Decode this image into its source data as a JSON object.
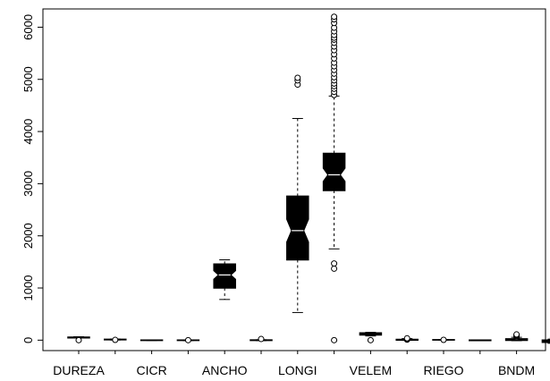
{
  "chart_data": {
    "type": "boxplot",
    "title": "",
    "xlabel": "",
    "ylabel": "",
    "ylim": [
      -200,
      6350
    ],
    "yticks": [
      0,
      1000,
      2000,
      3000,
      4000,
      5000,
      6000
    ],
    "ytick_labels": [
      "0",
      "1000",
      "2000",
      "3000",
      "4000",
      "5000",
      "6000"
    ],
    "notched": true,
    "grid": false,
    "legend": "none",
    "box_color": "#000000",
    "categories": [
      "DUREZA",
      "",
      "CICR",
      "",
      "ANCHO",
      "",
      "LONGI",
      "",
      "VELEM",
      "",
      "RIEGO",
      "",
      "BNDM",
      ""
    ],
    "boxes": [
      {
        "q1": 45,
        "median": 52,
        "q3": 58,
        "whisker_low": 40,
        "whisker_high": 65,
        "outliers": [
          0
        ]
      },
      {
        "q1": 8,
        "median": 12,
        "q3": 16,
        "whisker_low": 3,
        "whisker_high": 22,
        "outliers": [
          5
        ]
      },
      {
        "q1": -4,
        "median": -2,
        "q3": 0,
        "whisker_low": -6,
        "whisker_high": 2,
        "outliers": []
      },
      {
        "q1": -5,
        "median": -2,
        "q3": 1,
        "whisker_low": -8,
        "whisker_high": 4,
        "outliers": [
          0
        ]
      },
      {
        "q1": 1000,
        "median": 1250,
        "q3": 1460,
        "whisker_low": 780,
        "whisker_high": 1540,
        "outliers": []
      },
      {
        "q1": -4,
        "median": 0,
        "q3": 4,
        "whisker_low": -8,
        "whisker_high": 8,
        "outliers": [
          22
        ]
      },
      {
        "q1": 1540,
        "median": 2100,
        "q3": 2760,
        "whisker_low": 530,
        "whisker_high": 4250,
        "outliers": [
          4900,
          4980,
          5030
        ]
      },
      {
        "q1": 2870,
        "median": 3170,
        "q3": 3580,
        "whisker_low": 1750,
        "whisker_high": 4680,
        "outliers": [
          0,
          1370,
          1470,
          4700,
          4760,
          4820,
          4870,
          4920,
          4980,
          5040,
          5110,
          5180,
          5250,
          5320,
          5400,
          5480,
          5560,
          5630,
          5700,
          5760,
          5800,
          5850,
          5920,
          5990,
          6080,
          6150,
          6200
        ]
      },
      {
        "q1": 100,
        "median": 120,
        "q3": 140,
        "whisker_low": 80,
        "whisker_high": 150,
        "outliers": [
          0
        ]
      },
      {
        "q1": 2,
        "median": 8,
        "q3": 14,
        "whisker_low": -4,
        "whisker_high": 30,
        "outliers": [
          10,
          20,
          35
        ]
      },
      {
        "q1": 4,
        "median": 6,
        "q3": 8,
        "whisker_low": 2,
        "whisker_high": 10,
        "outliers": [
          6
        ]
      },
      {
        "q1": -6,
        "median": -3,
        "q3": 0,
        "whisker_low": -10,
        "whisker_high": 6,
        "outliers": []
      },
      {
        "q1": -2,
        "median": 8,
        "q3": 25,
        "whisker_low": -10,
        "whisker_high": 55,
        "outliers": [
          50,
          70,
          85,
          100,
          110
        ]
      },
      {
        "q1": -40,
        "median": -20,
        "q3": 0,
        "whisker_low": -60,
        "whisker_high": 20,
        "outliers": [
          -50,
          30,
          50
        ]
      }
    ]
  }
}
